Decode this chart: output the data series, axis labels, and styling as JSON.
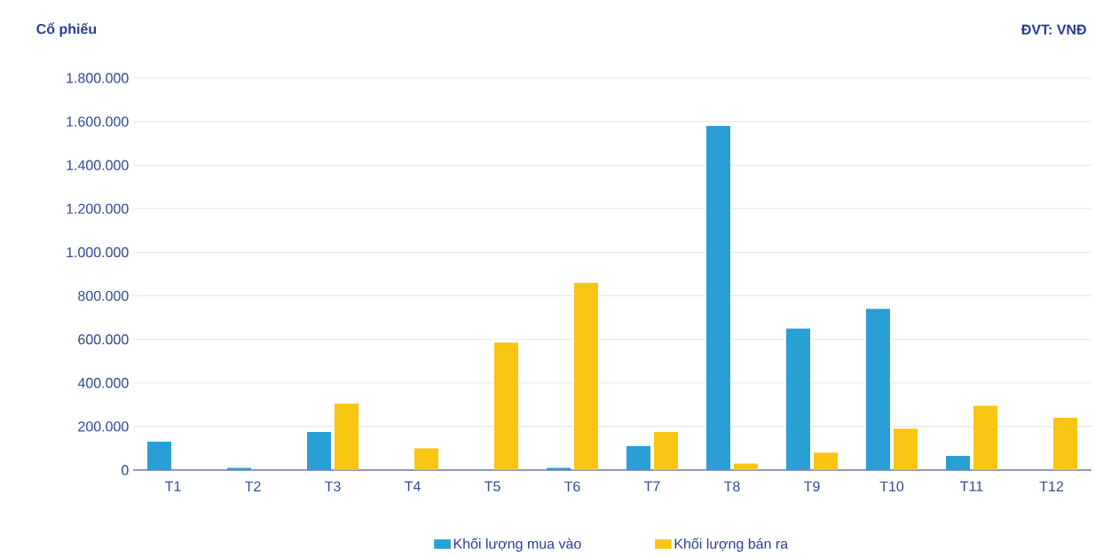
{
  "chart_data": {
    "type": "bar",
    "ylabel": "Cổ phiếu",
    "annotations": [
      "ĐVT: VNĐ"
    ],
    "categories": [
      "T1",
      "T2",
      "T3",
      "T4",
      "T5",
      "T6",
      "T7",
      "T8",
      "T9",
      "T10",
      "T11",
      "T12"
    ],
    "series": [
      {
        "name": "Khối lượng mua vào",
        "color": "#2a9fd6",
        "values": [
          130000,
          10000,
          175000,
          null,
          null,
          10000,
          110000,
          1580000,
          650000,
          740000,
          65000,
          null
        ]
      },
      {
        "name": "Khối lượng bán ra",
        "color": "#f9c513",
        "values": [
          null,
          null,
          305000,
          100000,
          585000,
          860000,
          175000,
          30000,
          80000,
          190000,
          295000,
          240000
        ]
      }
    ],
    "ylim": [
      0,
      1800000
    ],
    "yticks": [
      {
        "value": 0,
        "label": "0"
      },
      {
        "value": 200000,
        "label": "200.000"
      },
      {
        "value": 400000,
        "label": "400.000"
      },
      {
        "value": 600000,
        "label": "600.000"
      },
      {
        "value": 800000,
        "label": "800.000"
      },
      {
        "value": 1000000,
        "label": "1.000.000"
      },
      {
        "value": 1200000,
        "label": "1.200.000"
      },
      {
        "value": 1400000,
        "label": "1.400.000"
      },
      {
        "value": 1600000,
        "label": "1.600.000"
      },
      {
        "value": 1800000,
        "label": "1.800.000"
      }
    ],
    "grid": "y",
    "legend": "bottom"
  }
}
